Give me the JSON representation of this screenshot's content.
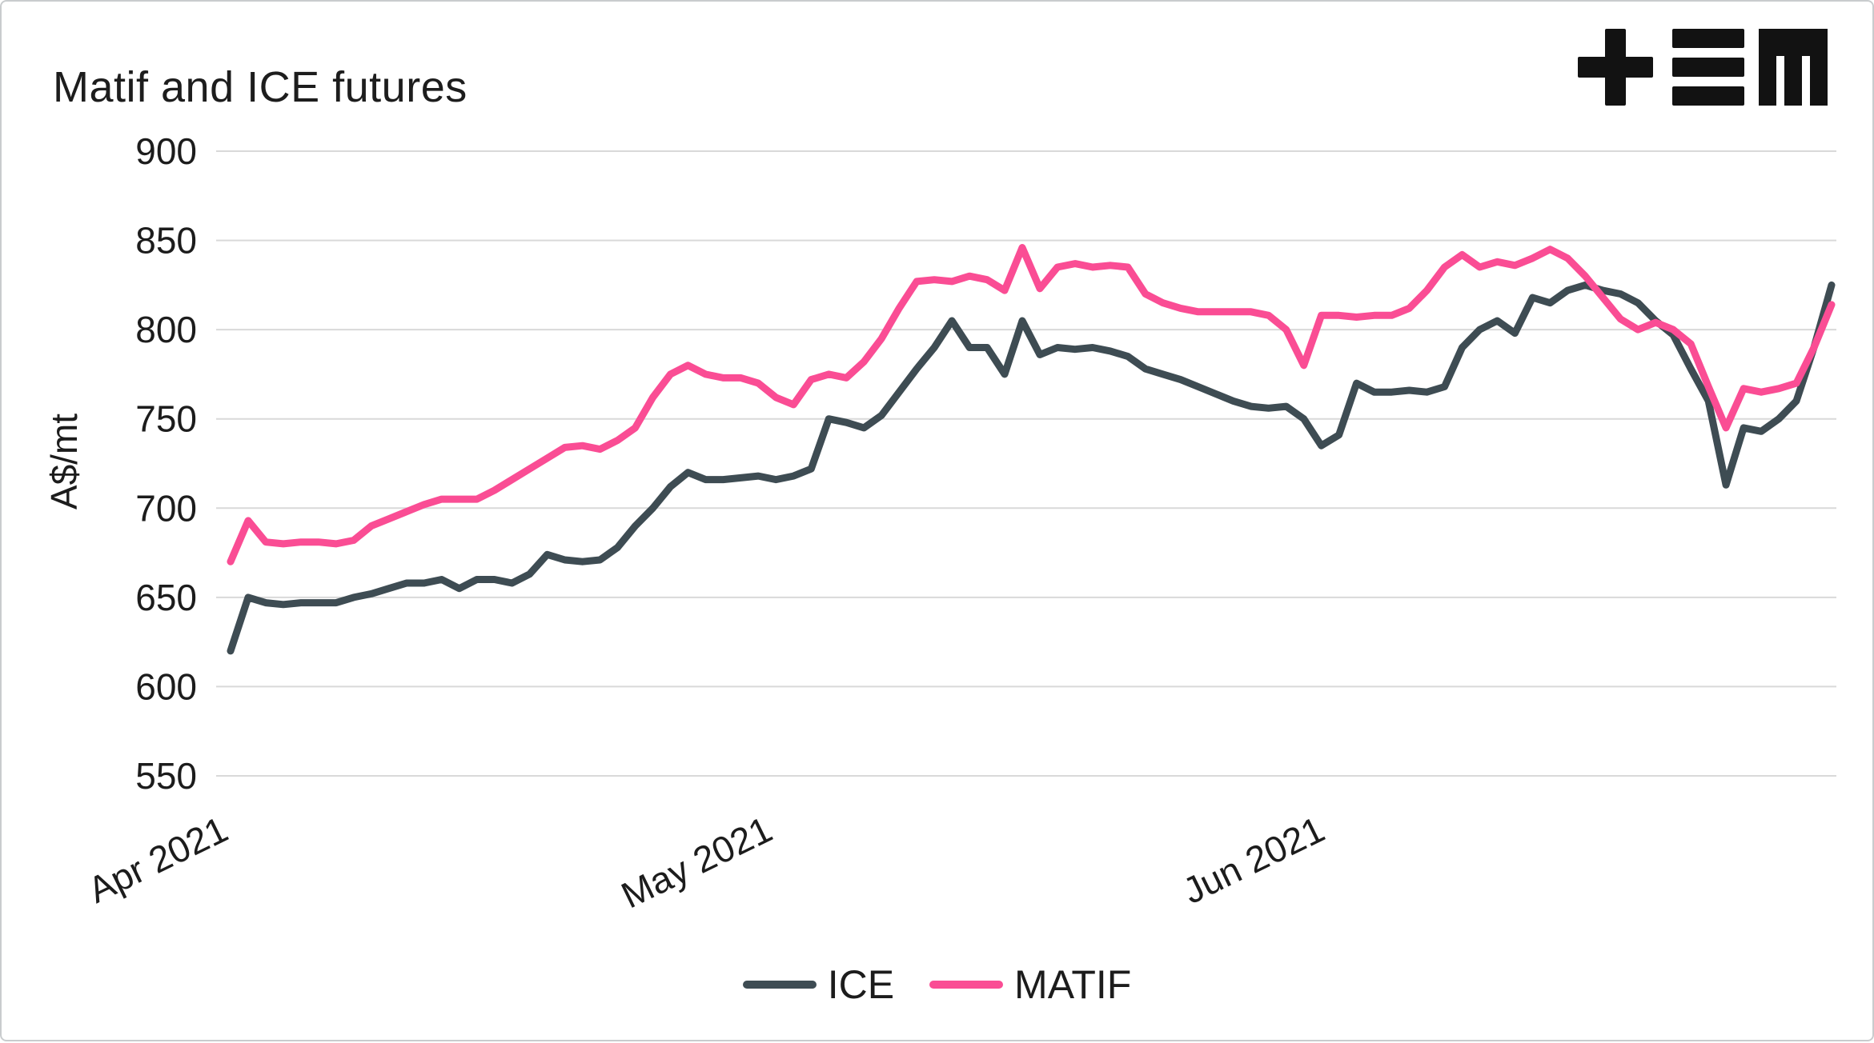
{
  "header": {
    "title": "Matif and ICE futures",
    "logo": "tem-logo"
  },
  "chart_data": {
    "type": "line",
    "title": "Matif and ICE futures",
    "xlabel": "",
    "ylabel": "A$/mt",
    "ylim": [
      550,
      900
    ],
    "yticks": [
      550,
      600,
      650,
      700,
      750,
      800,
      850,
      900
    ],
    "grid": "horizontal",
    "legend_position": "bottom-center",
    "x_axis": {
      "labels": [
        {
          "label": "Apr 2021",
          "frac": 0.0
        },
        {
          "label": "May 2021",
          "frac": 0.34
        },
        {
          "label": "Jun 2021",
          "frac": 0.685
        }
      ]
    },
    "series": [
      {
        "name": "ICE",
        "color": "#3e4c53",
        "values": [
          620,
          650,
          647,
          646,
          647,
          647,
          647,
          650,
          652,
          655,
          658,
          658,
          660,
          655,
          660,
          660,
          658,
          663,
          674,
          671,
          670,
          671,
          678,
          690,
          700,
          712,
          720,
          716,
          716,
          717,
          718,
          716,
          718,
          722,
          750,
          748,
          745,
          752,
          765,
          778,
          790,
          805,
          790,
          790,
          775,
          805,
          786,
          790,
          789,
          790,
          788,
          785,
          778,
          775,
          772,
          768,
          764,
          760,
          757,
          756,
          757,
          750,
          735,
          741,
          770,
          765,
          765,
          766,
          765,
          768,
          790,
          800,
          805,
          798,
          818,
          815,
          822,
          825,
          822,
          820,
          815,
          805,
          797,
          778,
          760,
          713,
          745,
          743,
          750,
          760,
          790,
          825
        ]
      },
      {
        "name": "MATIF",
        "color": "#fa4d94",
        "values": [
          670,
          693,
          681,
          680,
          681,
          681,
          680,
          682,
          690,
          694,
          698,
          702,
          705,
          705,
          705,
          710,
          716,
          722,
          728,
          734,
          735,
          733,
          738,
          745,
          762,
          775,
          780,
          775,
          773,
          773,
          770,
          762,
          758,
          772,
          775,
          773,
          782,
          795,
          812,
          827,
          828,
          827,
          830,
          828,
          822,
          846,
          823,
          835,
          837,
          835,
          836,
          835,
          820,
          815,
          812,
          810,
          810,
          810,
          810,
          808,
          800,
          780,
          808,
          808,
          807,
          808,
          808,
          812,
          822,
          835,
          842,
          835,
          838,
          836,
          840,
          845,
          840,
          830,
          818,
          806,
          800,
          804,
          800,
          792,
          768,
          745,
          767,
          765,
          767,
          770,
          790,
          814
        ]
      }
    ]
  },
  "legend": {
    "items": [
      {
        "label": "ICE",
        "color": "#3e4c53"
      },
      {
        "label": "MATIF",
        "color": "#fa4d94"
      }
    ]
  }
}
